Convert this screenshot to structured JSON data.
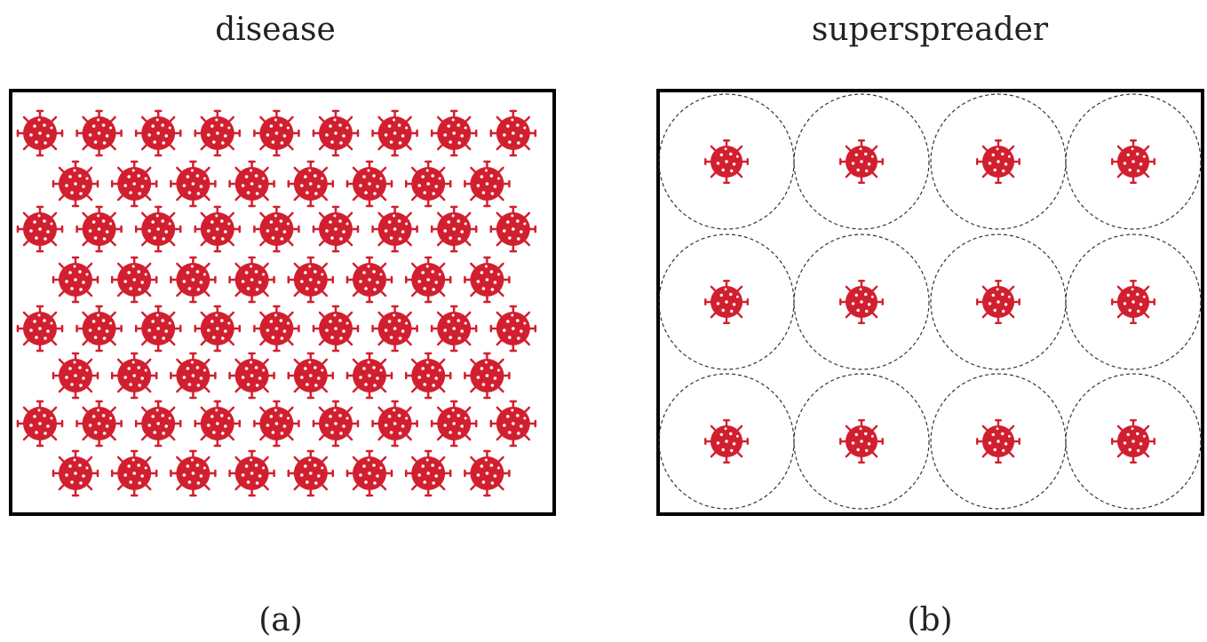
{
  "panels": [
    {
      "title": "disease",
      "caption": "(a)"
    },
    {
      "title": "superspreader",
      "caption": "(b)"
    }
  ]
}
